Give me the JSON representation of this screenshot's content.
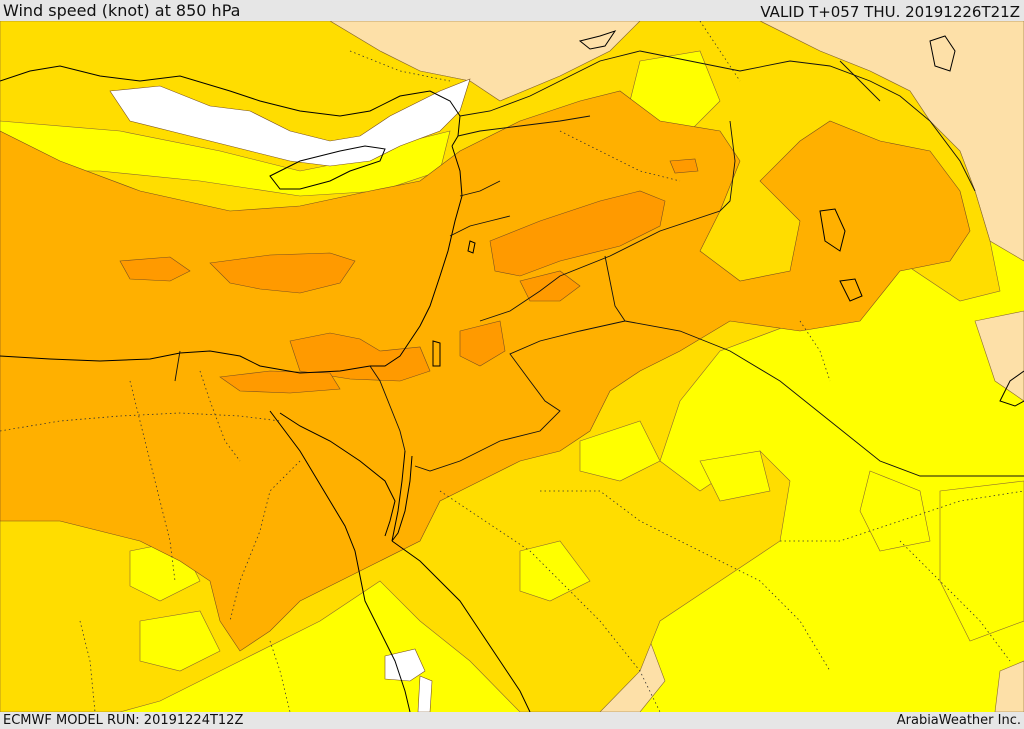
{
  "header": {
    "title": "Wind speed (knot) at 850 hPa",
    "valid": "VALID T+057 THU. 20191226T21Z"
  },
  "footer": {
    "model_run": "ECMWF MODEL RUN: 20191224T12Z",
    "credit": "ArabiaWeather Inc."
  },
  "map": {
    "region": "Eastern Mediterranean and Levant",
    "palette": {
      "calm": "#ffffff",
      "light": "#fde0a8",
      "low": "#ffff00",
      "moderate": "#ffdd00",
      "fresh": "#ffb000",
      "strong": "#ff9a00",
      "sea": "#ffff00"
    },
    "layers": [
      "wind-speed-fill",
      "wind-speed-contours",
      "coastlines",
      "country-borders",
      "province-borders"
    ]
  }
}
